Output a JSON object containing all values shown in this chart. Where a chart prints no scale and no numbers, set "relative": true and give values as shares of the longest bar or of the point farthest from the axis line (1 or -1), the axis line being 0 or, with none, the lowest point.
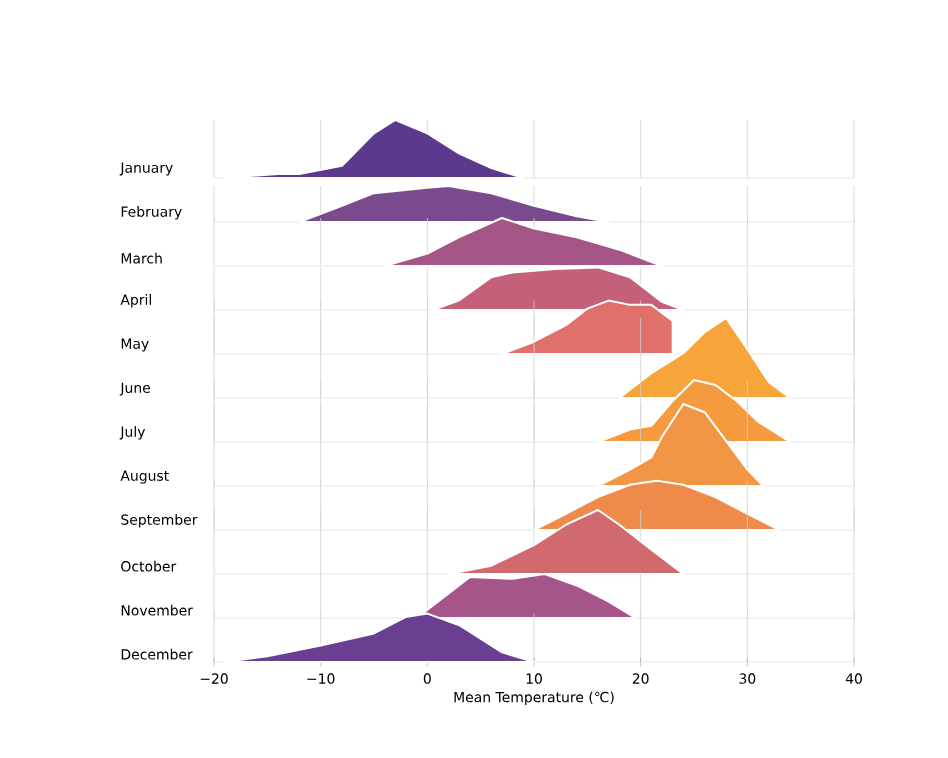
{
  "chart_data": [
    {
      "type": "area",
      "relative": true,
      "ylabel": "January",
      "color": "#5b3a8e",
      "x": [
        -19,
        -14,
        -12,
        -8,
        -5,
        -3,
        0,
        3,
        6,
        9
      ],
      "values": [
        0,
        0.07,
        0.07,
        0.21,
        0.77,
        1,
        0.77,
        0.42,
        0.17,
        0
      ],
      "xlim": [
        -20,
        40
      ],
      "xticks": [
        -20,
        -10,
        0,
        10,
        20,
        30,
        40
      ],
      "grid": "x",
      "tick_labels": false
    },
    {
      "type": "area",
      "relative": true,
      "ylabel": "February",
      "color": "#7a4a8f",
      "x": [
        -12,
        -8,
        -5,
        0,
        2,
        6,
        10,
        14,
        17
      ],
      "values": [
        0,
        0.45,
        0.8,
        0.95,
        1,
        0.8,
        0.45,
        0.16,
        0
      ],
      "xlim": [
        -20,
        40
      ],
      "xticks": [
        -20,
        -10,
        0,
        10,
        20,
        30,
        40
      ],
      "grid": "x",
      "tick_labels": false
    },
    {
      "type": "area",
      "relative": true,
      "ylabel": "March",
      "color": "#a35586",
      "x": [
        -4,
        0,
        3,
        7,
        10,
        14,
        18,
        22
      ],
      "values": [
        0,
        0.26,
        0.6,
        1,
        0.78,
        0.6,
        0.34,
        0
      ],
      "xlim": [
        -20,
        40
      ],
      "xticks": [
        -20,
        -10,
        0,
        10,
        20,
        30,
        40
      ],
      "grid": "x",
      "tick_labels": false
    },
    {
      "type": "area",
      "relative": true,
      "ylabel": "April",
      "color": "#c5607a",
      "x": [
        0.5,
        3,
        6,
        8,
        12,
        16,
        19,
        22,
        24
      ],
      "values": [
        0,
        0.23,
        0.77,
        0.88,
        0.96,
        1,
        0.77,
        0.19,
        0
      ],
      "xlim": [
        -20,
        40
      ],
      "xticks": [
        -20,
        -10,
        0,
        10,
        20,
        30,
        40
      ],
      "grid": "x",
      "tick_labels": false
    },
    {
      "type": "area",
      "relative": true,
      "ylabel": "May",
      "color": "#e0706a",
      "x": [
        7,
        10,
        13,
        15,
        17,
        19,
        21,
        23
      ],
      "values": [
        0,
        0.23,
        0.54,
        0.85,
        1,
        0.92,
        0.92,
        0.62
      ],
      "xlim": [
        -20,
        40
      ],
      "xticks": [
        -20,
        -10,
        0,
        10,
        20,
        30,
        40
      ],
      "grid": "x",
      "tick_labels": false
    },
    {
      "type": "area",
      "relative": true,
      "ylabel": "June",
      "color": "#f7a53a",
      "x": [
        18,
        21,
        24,
        26,
        28,
        30,
        32,
        34
      ],
      "values": [
        0,
        0.31,
        0.56,
        0.82,
        1,
        0.61,
        0.2,
        0
      ],
      "xlim": [
        -20,
        40
      ],
      "xticks": [
        -20,
        -10,
        0,
        10,
        20,
        30,
        40
      ],
      "grid": "x",
      "tick_labels": false
    },
    {
      "type": "area",
      "relative": true,
      "ylabel": "July",
      "color": "#f59a3e",
      "x": [
        16,
        19,
        21,
        23,
        25,
        27,
        29,
        31,
        34
      ],
      "values": [
        0,
        0.2,
        0.26,
        0.66,
        1,
        0.92,
        0.66,
        0.33,
        0
      ],
      "xlim": [
        -20,
        40
      ],
      "xticks": [
        -20,
        -10,
        0,
        10,
        20,
        30,
        40
      ],
      "grid": "x",
      "tick_labels": false
    },
    {
      "type": "area",
      "relative": true,
      "ylabel": "August",
      "color": "#f29544",
      "x": [
        16,
        19,
        21,
        22,
        24,
        26,
        28,
        30,
        31.5
      ],
      "values": [
        0,
        0.2,
        0.35,
        0.6,
        1,
        0.9,
        0.55,
        0.2,
        0
      ],
      "xlim": [
        -20,
        40
      ],
      "xticks": [
        -20,
        -10,
        0,
        10,
        20,
        30,
        40
      ],
      "grid": "x",
      "tick_labels": false
    },
    {
      "type": "area",
      "relative": true,
      "ylabel": "September",
      "color": "#ee8a4a",
      "x": [
        10,
        13,
        16,
        19,
        21.5,
        24,
        27,
        30,
        33
      ],
      "values": [
        0,
        0.33,
        0.67,
        0.92,
        1,
        0.92,
        0.67,
        0.33,
        0
      ],
      "xlim": [
        -20,
        40
      ],
      "xticks": [
        -20,
        -10,
        0,
        10,
        20,
        30,
        40
      ],
      "grid": "x",
      "tick_labels": false
    },
    {
      "type": "area",
      "relative": true,
      "ylabel": "October",
      "color": "#d06a6e",
      "x": [
        2,
        6,
        10,
        13,
        16,
        18,
        21,
        24
      ],
      "values": [
        0,
        0.13,
        0.45,
        0.77,
        1,
        0.77,
        0.38,
        0
      ],
      "xlim": [
        -20,
        40
      ],
      "xticks": [
        -20,
        -10,
        0,
        10,
        20,
        30,
        40
      ],
      "grid": "x",
      "tick_labels": false
    },
    {
      "type": "area",
      "relative": true,
      "ylabel": "November",
      "color": "#a6558a",
      "x": [
        -1,
        2,
        4,
        8,
        11,
        14,
        17,
        19.5
      ],
      "values": [
        0,
        0.56,
        0.93,
        0.89,
        1,
        0.74,
        0.37,
        0
      ],
      "xlim": [
        -20,
        40
      ],
      "xticks": [
        -20,
        -10,
        0,
        10,
        20,
        30,
        40
      ],
      "grid": "x",
      "tick_labels": false
    },
    {
      "type": "area",
      "relative": true,
      "ylabel": "December",
      "color": "#6a3f92",
      "x": [
        -19,
        -15,
        -10,
        -5,
        -2,
        0,
        3,
        7,
        10
      ],
      "values": [
        0,
        0.12,
        0.34,
        0.59,
        0.93,
        1,
        0.76,
        0.2,
        0
      ],
      "xlim": [
        -20,
        40
      ],
      "xticks": [
        {
          "value": -20,
          "label": "−20"
        },
        {
          "value": -10,
          "label": "−10"
        },
        0,
        10,
        20,
        30,
        40
      ],
      "grid": "x",
      "tick_labels": "x",
      "xlabel": "Mean Temperature (℃)"
    }
  ]
}
